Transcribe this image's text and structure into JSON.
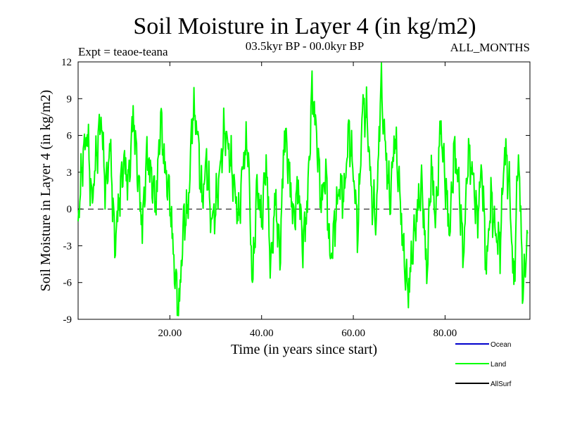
{
  "chart_data": {
    "type": "line",
    "title": "Soil Moisture in Layer 4 (in kg/m2)",
    "subtitle": "03.5kyr BP - 00.0kyr BP",
    "left_note": "Expt = teaoe-teana",
    "right_note": "ALL_MONTHS",
    "xlabel": "Time (in years since start)",
    "ylabel": "Soil Moisture in Layer 4 (in kg/m2)",
    "xlim": [
      0,
      98.5
    ],
    "ylim": [
      -9,
      12
    ],
    "x_ticks": [
      20,
      40,
      60,
      80
    ],
    "x_tick_labels": [
      "20.00",
      "40.00",
      "60.00",
      "80.00"
    ],
    "y_ticks": [
      -9,
      -6,
      -3,
      0,
      3,
      6,
      9,
      12
    ],
    "y_tick_labels": [
      "-9",
      "-6",
      "-3",
      "0",
      "3",
      "6",
      "9",
      "12"
    ],
    "zero_line": "dashed",
    "legend": [
      {
        "name": "Ocean",
        "color": "#0000cc"
      },
      {
        "name": "Land",
        "color": "#00ff00"
      },
      {
        "name": "AllSurf",
        "color": "#000000"
      }
    ],
    "series": [
      {
        "name": "Land",
        "color": "#00ff00",
        "x": [
          0,
          1,
          2,
          3,
          4,
          5,
          6,
          7,
          8,
          9,
          10,
          11,
          12,
          13,
          14,
          15,
          16,
          17,
          18,
          19,
          20,
          21,
          22,
          23,
          24,
          25,
          26,
          27,
          28,
          29,
          30,
          31,
          32,
          33,
          34,
          35,
          36,
          37,
          38,
          39,
          40,
          41,
          42,
          43,
          44,
          45,
          46,
          47,
          48,
          49,
          50,
          51,
          52,
          53,
          54,
          55,
          56,
          57,
          58,
          59,
          60,
          61,
          62,
          63,
          64,
          65,
          66,
          67,
          68,
          69,
          70,
          71,
          72,
          73,
          74,
          75,
          76,
          77,
          78,
          79,
          80,
          81,
          82,
          83,
          84,
          85,
          86,
          87,
          88,
          89,
          90,
          91,
          92,
          93,
          94,
          95,
          96,
          97,
          98
        ],
        "values": [
          -1.0,
          4.2,
          6.2,
          0.5,
          4.5,
          7.5,
          1.5,
          5.2,
          -3.0,
          1.0,
          4.0,
          2.0,
          7.8,
          3.0,
          -1.5,
          4.5,
          2.5,
          0.5,
          7.5,
          3.0,
          1.0,
          -5.0,
          -8.2,
          -1.0,
          0.0,
          8.2,
          6.5,
          0.5,
          4.0,
          -1.0,
          0.0,
          3.5,
          6.5,
          4.5,
          2.0,
          -1.0,
          4.0,
          5.5,
          -6.4,
          2.0,
          -1.0,
          4.0,
          -5.0,
          1.0,
          -4.0,
          6.5,
          3.0,
          -1.0,
          2.0,
          -3.0,
          0.5,
          9.8,
          6.0,
          0.5,
          3.0,
          -4.5,
          -1.0,
          2.0,
          1.0,
          6.5,
          3.0,
          -2.0,
          8.5,
          7.5,
          1.0,
          -1.0,
          10.2,
          5.0,
          0.5,
          6.0,
          2.0,
          -4.0,
          -6.8,
          -3.0,
          0.0,
          2.0,
          -5.5,
          3.5,
          -1.0,
          7.0,
          2.5,
          -2.0,
          5.0,
          2.0,
          -4.0,
          4.5,
          3.0,
          -1.0,
          3.5,
          -5.0,
          1.0,
          -2.0,
          -3.0,
          5.0,
          2.0,
          -6.5,
          5.0,
          -7.0,
          -2.0
        ]
      }
    ]
  }
}
